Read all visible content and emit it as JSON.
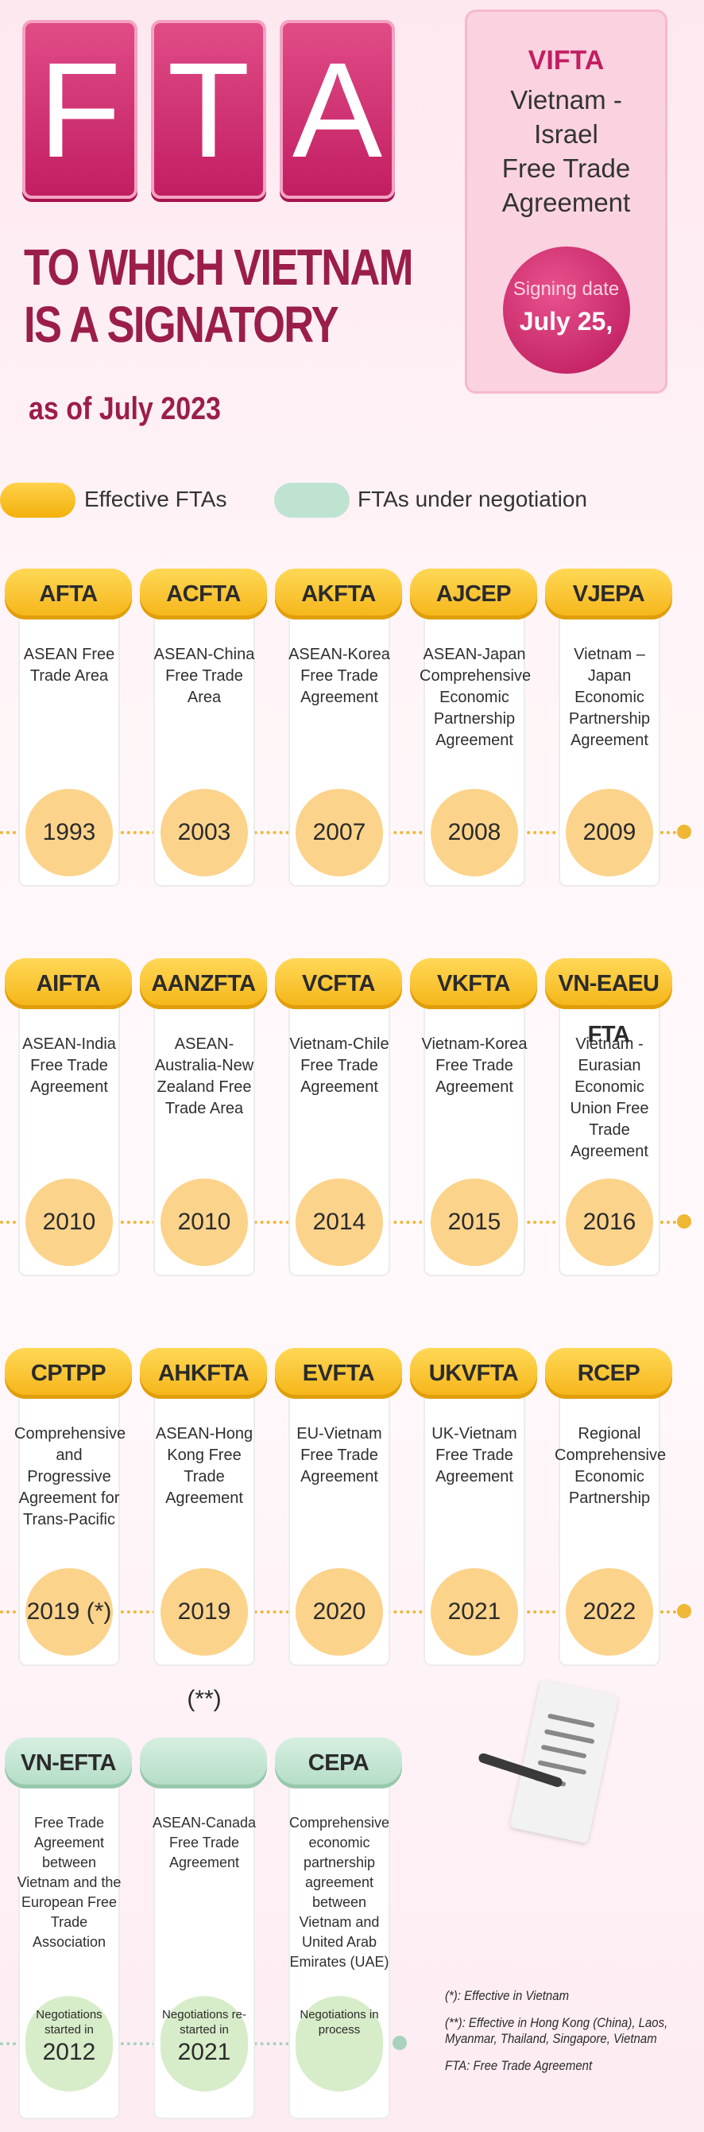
{
  "header": {
    "tiles": [
      "F",
      "T",
      "A"
    ],
    "title_line1": "TO WHICH VIETNAM",
    "title_line2": "IS A SIGNATORY",
    "as_of": "as of July 2023"
  },
  "vifta": {
    "code": "VIFTA",
    "name_line1": "Vietnam - Israel",
    "name_line2": "Free Trade",
    "name_line3": "Agreement",
    "signing_label": "Signing date",
    "signing_date": "July 25,"
  },
  "legend": {
    "effective": "Effective FTAs",
    "negotiation": "FTAs under negotiation"
  },
  "rows": [
    [
      {
        "code": "AFTA",
        "desc": "ASEAN Free Trade Area",
        "year": "1993"
      },
      {
        "code": "ACFTA",
        "desc": "ASEAN-China Free Trade Area",
        "year": "2003"
      },
      {
        "code": "AKFTA",
        "desc": "ASEAN-Korea Free Trade Agreement",
        "year": "2007"
      },
      {
        "code": "AJCEP",
        "desc": "ASEAN-Japan Comprehensive Economic Partnership Agreement",
        "year": "2008"
      },
      {
        "code": "VJEPA",
        "desc": "Vietnam – Japan Economic Partnership Agreement",
        "year": "2009"
      }
    ],
    [
      {
        "code": "AIFTA",
        "desc": "ASEAN-India Free Trade Agreement",
        "year": "2010"
      },
      {
        "code": "AANZFTA",
        "desc": "ASEAN-Australia-New Zealand Free Trade Area",
        "year": "2010"
      },
      {
        "code": "VCFTA",
        "desc": "Vietnam-Chile Free Trade Agreement",
        "year": "2014"
      },
      {
        "code": "VKFTA",
        "desc": "Vietnam-Korea Free Trade Agreement",
        "year": "2015"
      },
      {
        "code": "VN-EAEU FTA",
        "desc": "Vietnam - Eurasian Economic Union Free Trade Agreement",
        "year": "2016"
      }
    ],
    [
      {
        "code": "CPTPP",
        "desc": "Comprehensive and Progressive Agreement for Trans-Pacific",
        "year": "2019 (*)"
      },
      {
        "code": "AHKFTA",
        "desc": "ASEAN-Hong Kong Free Trade Agreement",
        "year": "2019 (**)"
      },
      {
        "code": "EVFTA",
        "desc": "EU-Vietnam Free Trade Agreement",
        "year": "2020"
      },
      {
        "code": "UKVFTA",
        "desc": "UK-Vietnam Free Trade Agreement",
        "year": "2021"
      },
      {
        "code": "RCEP",
        "desc": "Regional Comprehensive Economic Partnership",
        "year": "2022"
      }
    ]
  ],
  "negotiations": [
    {
      "code": "VN-EFTA",
      "desc": "Free Trade Agreement between Vietnam and the European Free Trade Association",
      "status": "Negotiations started in",
      "year": "2012"
    },
    {
      "code": "",
      "desc": "ASEAN-Canada Free Trade Agreement",
      "status": "Negotiations re-started in",
      "year": "2021"
    },
    {
      "code": "CEPA",
      "desc": "Comprehensive economic partnership agreement between Vietnam and United Arab Emirates (UAE)",
      "status": "Negotiations in process",
      "year": ""
    }
  ],
  "notes": {
    "n1": "(*): Effective in Vietnam",
    "n2": "(**): Effective in Hong Kong (China), Laos, Myanmar, Thailand, Singapore, Vietnam",
    "n3": "FTA: Free Trade Agreement"
  },
  "colors": {
    "accent": "#c21e62",
    "effective": "#f5b417",
    "negotiation": "#b3dcc6",
    "year_circle": "#fcd38b"
  }
}
